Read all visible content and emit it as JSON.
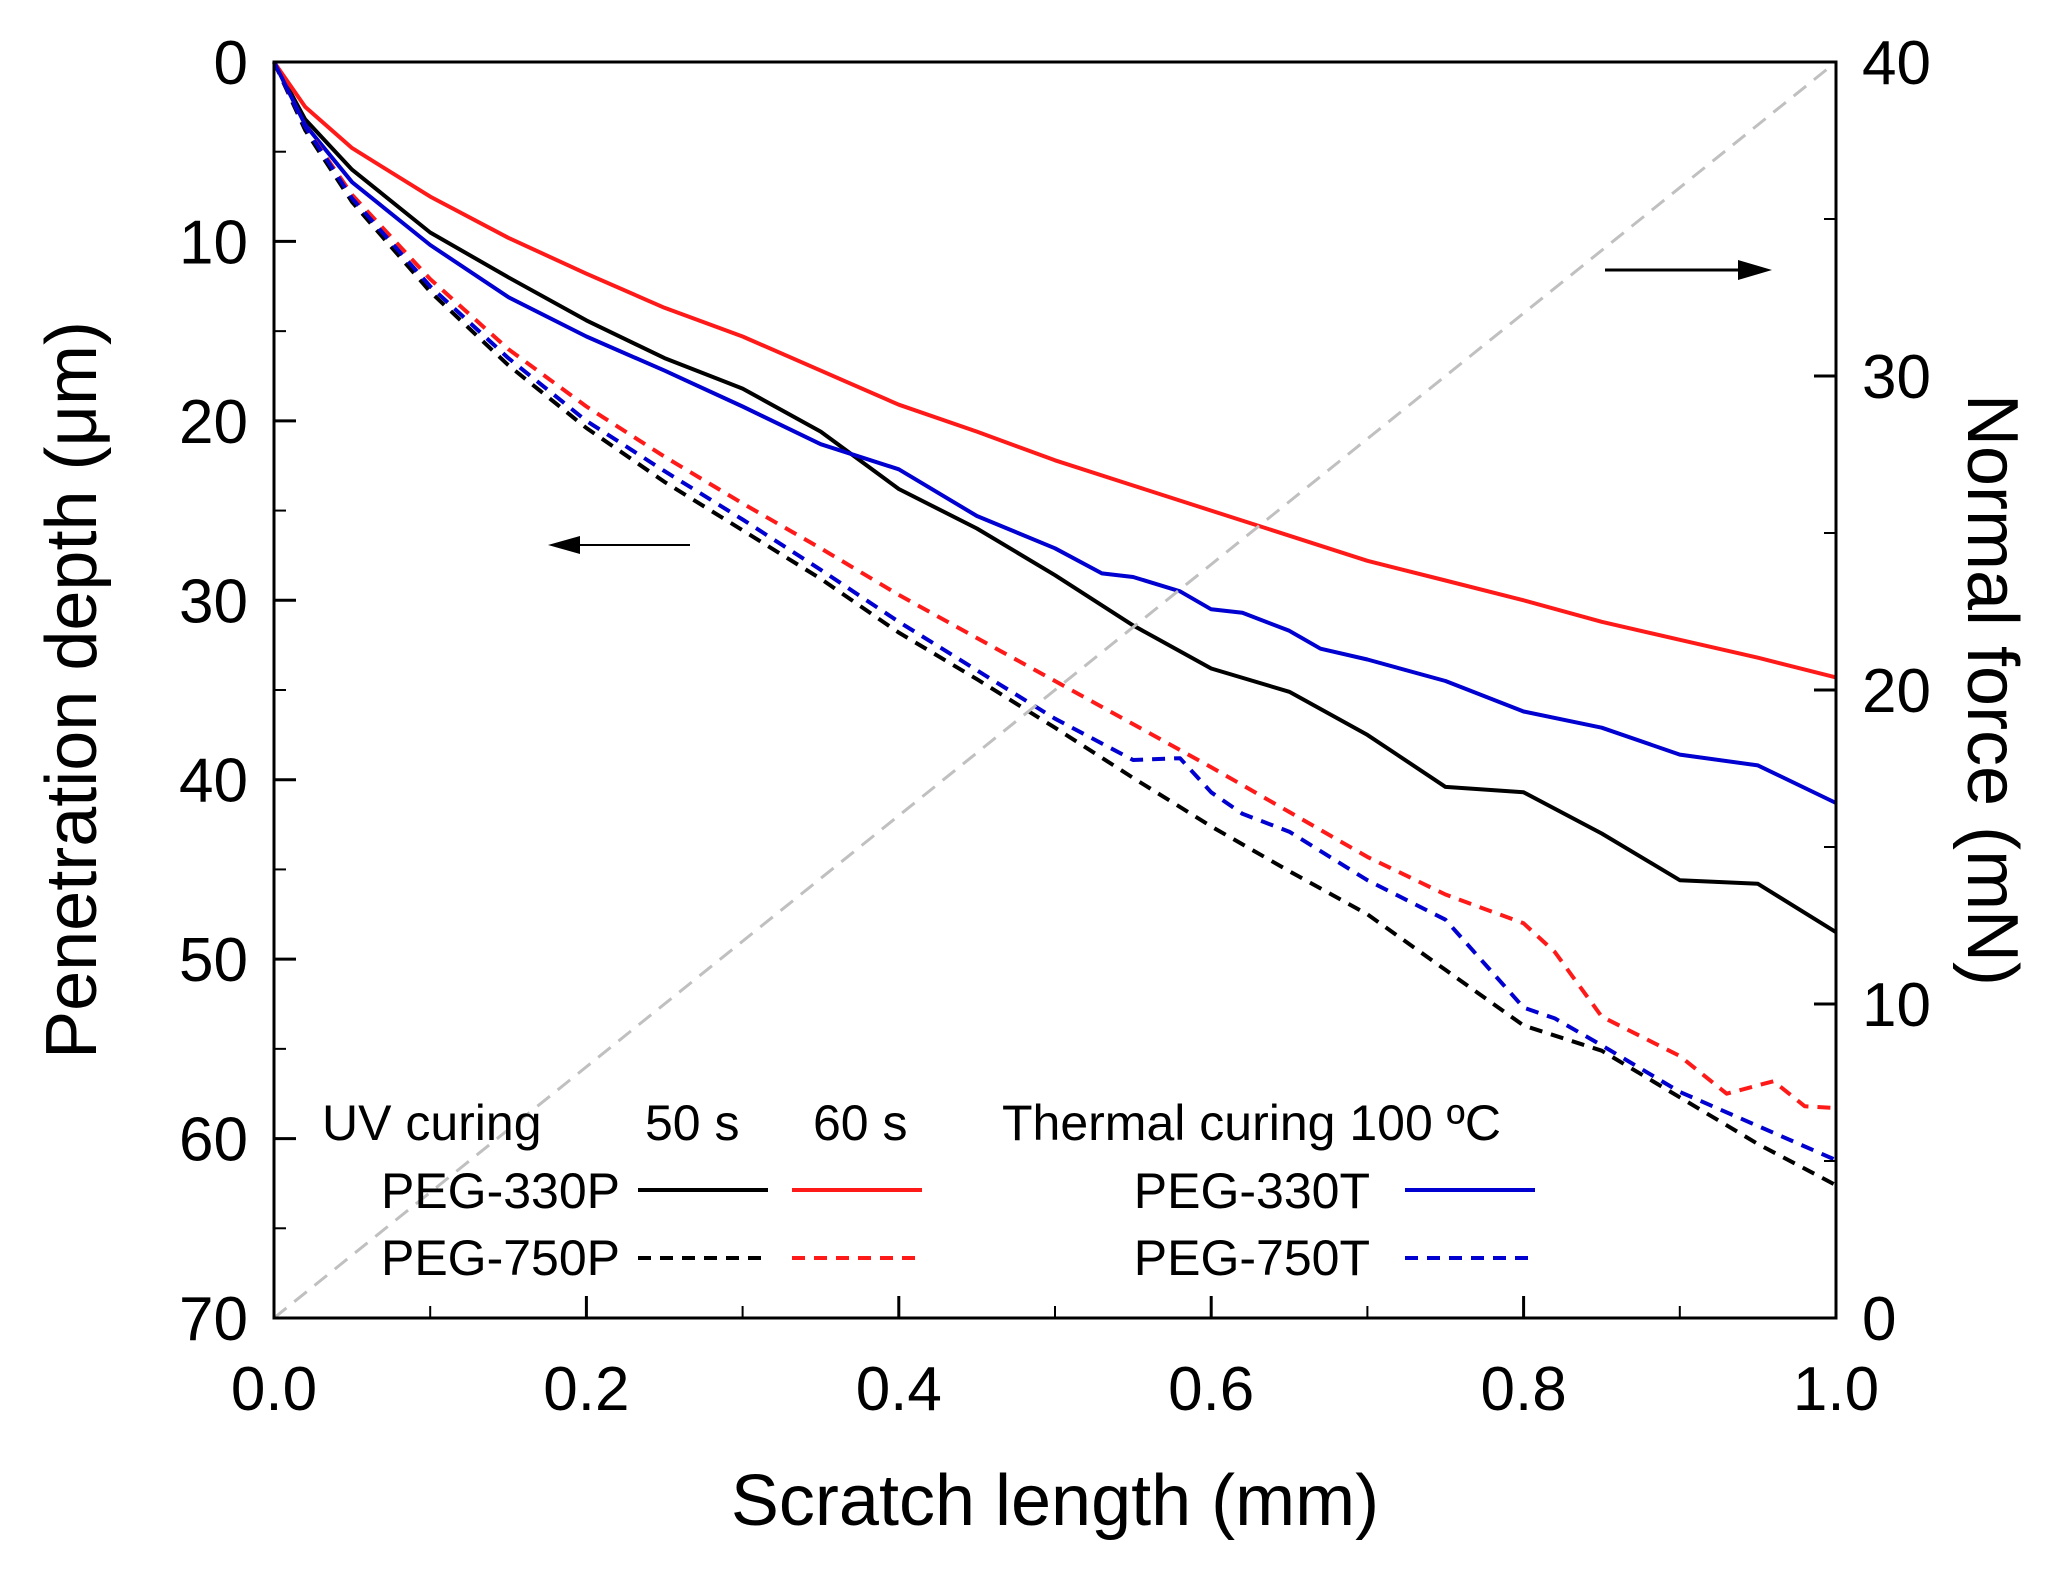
{
  "chart_data": {
    "type": "line",
    "xlabel": "Scratch length (mm)",
    "ylabel": "Penetration depth (μm)",
    "y2label": "Normal force (mN)",
    "xlim": [
      0.0,
      1.0
    ],
    "ylim": [
      0,
      70
    ],
    "y_inverted": true,
    "y2lim": [
      0,
      40
    ],
    "x_ticks": [
      "0.0",
      "0.2",
      "0.4",
      "0.6",
      "0.8",
      "1.0"
    ],
    "y_ticks": [
      "0",
      "10",
      "20",
      "30",
      "40",
      "50",
      "60",
      "70"
    ],
    "y2_ticks": [
      "0",
      "10",
      "20",
      "30",
      "40"
    ],
    "grid": false,
    "legend": {
      "position": "bottom",
      "uv_heading": "UV curing",
      "time_50": "50 s",
      "time_60": "60 s",
      "thermal_heading": "Thermal curing 100 ºC",
      "labels": {
        "p330": "PEG-330P",
        "p750": "PEG-750P",
        "t330": "PEG-330T",
        "t750": "PEG-750T"
      }
    },
    "annotations": [
      {
        "type": "arrow",
        "direction": "left",
        "meaning": "curves refer to left axis"
      },
      {
        "type": "arrow",
        "direction": "right",
        "meaning": "dashed gray line refers to right axis"
      }
    ],
    "series": [
      {
        "name": "PEG-330P 50 s",
        "color": "#000000",
        "dash": "solid",
        "axis": "left",
        "x": [
          0,
          0.02,
          0.05,
          0.1,
          0.15,
          0.2,
          0.25,
          0.3,
          0.35,
          0.4,
          0.45,
          0.5,
          0.55,
          0.6,
          0.65,
          0.7,
          0.75,
          0.8,
          0.85,
          0.9,
          0.95,
          1.0
        ],
        "y": [
          0,
          3.2,
          6,
          9.5,
          12,
          14.4,
          16.5,
          18.2,
          20.6,
          23.8,
          26,
          28.6,
          31.4,
          33.8,
          35.1,
          37.5,
          40.4,
          40.7,
          43,
          45.6,
          45.8,
          48.5
        ]
      },
      {
        "name": "PEG-330P 60 s",
        "color": "#ff1a1a",
        "dash": "solid",
        "axis": "left",
        "x": [
          0,
          0.02,
          0.05,
          0.1,
          0.15,
          0.2,
          0.25,
          0.3,
          0.35,
          0.4,
          0.45,
          0.5,
          0.55,
          0.6,
          0.65,
          0.7,
          0.75,
          0.8,
          0.85,
          0.9,
          0.95,
          1.0
        ],
        "y": [
          0,
          2.5,
          4.8,
          7.5,
          9.8,
          11.8,
          13.7,
          15.3,
          17.2,
          19.1,
          20.6,
          22.2,
          23.6,
          25.0,
          26.4,
          27.8,
          28.9,
          30.0,
          31.2,
          32.2,
          33.2,
          34.3
        ]
      },
      {
        "name": "PEG-330T",
        "color": "#0000d0",
        "dash": "solid",
        "axis": "left",
        "x": [
          0,
          0.02,
          0.05,
          0.1,
          0.15,
          0.2,
          0.25,
          0.3,
          0.35,
          0.4,
          0.45,
          0.5,
          0.53,
          0.55,
          0.58,
          0.6,
          0.62,
          0.65,
          0.67,
          0.7,
          0.75,
          0.8,
          0.85,
          0.9,
          0.95,
          1.0
        ],
        "y": [
          0,
          3.5,
          6.7,
          10.2,
          13.1,
          15.3,
          17.2,
          19.2,
          21.3,
          22.7,
          25.3,
          27.1,
          28.5,
          28.7,
          29.5,
          30.5,
          30.7,
          31.7,
          32.7,
          33.3,
          34.5,
          36.2,
          37.1,
          38.6,
          39.2,
          41.3
        ]
      },
      {
        "name": "PEG-750P 50 s",
        "color": "#000000",
        "dash": "dashed",
        "axis": "left",
        "x": [
          0,
          0.02,
          0.05,
          0.1,
          0.15,
          0.2,
          0.25,
          0.3,
          0.35,
          0.4,
          0.45,
          0.5,
          0.55,
          0.6,
          0.65,
          0.7,
          0.75,
          0.8,
          0.85,
          0.9,
          0.95,
          1.0
        ],
        "y": [
          0,
          3.8,
          7.8,
          12.8,
          16.9,
          20.4,
          23.4,
          26.1,
          28.8,
          31.8,
          34.4,
          37.1,
          39.9,
          42.6,
          45.1,
          47.5,
          50.6,
          53.7,
          55.1,
          57.7,
          60.3,
          62.6
        ]
      },
      {
        "name": "PEG-750P 60 s",
        "color": "#ff1a1a",
        "dash": "dashed",
        "axis": "left",
        "x": [
          0,
          0.02,
          0.05,
          0.1,
          0.15,
          0.2,
          0.25,
          0.3,
          0.35,
          0.4,
          0.45,
          0.5,
          0.55,
          0.6,
          0.65,
          0.7,
          0.75,
          0.8,
          0.82,
          0.85,
          0.9,
          0.93,
          0.96,
          0.98,
          1.0
        ],
        "y": [
          0,
          3.6,
          7.4,
          12.1,
          16.0,
          19.2,
          22.0,
          24.6,
          27.1,
          29.7,
          32.1,
          34.5,
          36.9,
          39.3,
          41.8,
          44.3,
          46.4,
          48.0,
          49.6,
          53.2,
          55.4,
          57.5,
          56.8,
          58.2,
          58.3
        ]
      },
      {
        "name": "PEG-750T",
        "color": "#0000d0",
        "dash": "dashed",
        "axis": "left",
        "x": [
          0,
          0.02,
          0.05,
          0.1,
          0.15,
          0.2,
          0.25,
          0.3,
          0.35,
          0.4,
          0.45,
          0.5,
          0.55,
          0.58,
          0.6,
          0.62,
          0.65,
          0.7,
          0.75,
          0.8,
          0.82,
          0.85,
          0.9,
          0.95,
          1.0
        ],
        "y": [
          0,
          3.6,
          7.6,
          12.5,
          16.5,
          20.0,
          22.8,
          25.5,
          28.3,
          31.2,
          33.9,
          36.6,
          38.9,
          38.8,
          40.7,
          41.9,
          42.9,
          45.6,
          47.8,
          52.7,
          53.3,
          54.8,
          57.4,
          59.3,
          61.2
        ]
      },
      {
        "name": "Normal force",
        "color": "#c0c0c0",
        "dash": "dashed",
        "axis": "right",
        "x": [
          0.0,
          1.0
        ],
        "y": [
          0,
          40
        ]
      }
    ]
  }
}
